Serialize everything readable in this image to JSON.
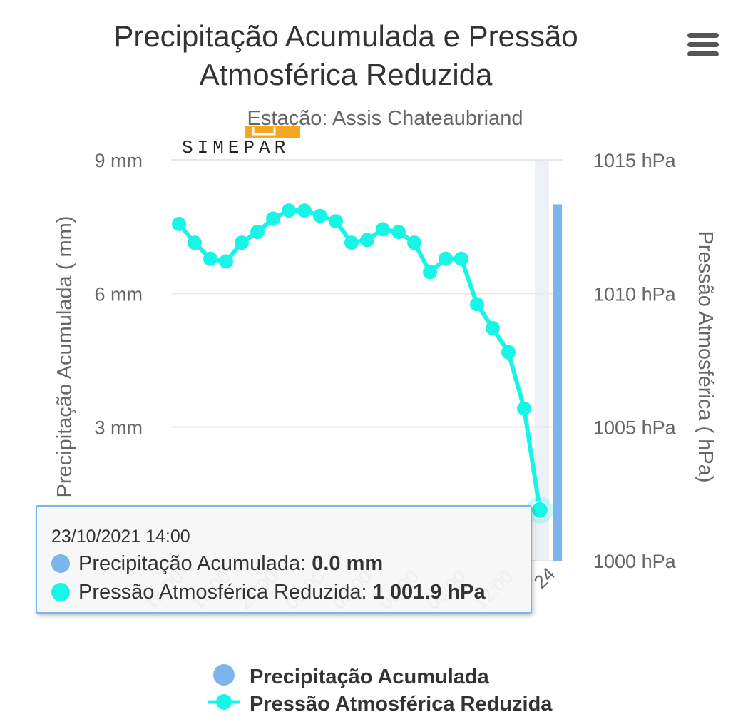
{
  "header": {
    "title_line1": "Precipitação Acumulada e Pressão",
    "title_line2": "Atmosférica Reduzida",
    "subtitle": "Estação: Assis Chateaubriand",
    "logo_text": "SIMEPAR",
    "menu_icon": "hamburger-menu-icon"
  },
  "colors": {
    "precip": "#7cb5ec",
    "pressure": "#17f6e6",
    "grid": "#e6e6e6",
    "axis_text": "#666666",
    "logo_orange": "#f5a623",
    "highlight_band": "#eef0f8"
  },
  "chart_data": {
    "type": "bar+line",
    "x_tick_labels": [
      "15:00",
      "18:00",
      "21:00",
      "00:00",
      "03:00",
      "06:00",
      "09:00",
      "12:00",
      "24"
    ],
    "left_axis": {
      "title": "Precipitação Acumulada ( mm)",
      "ticks": [
        "3 mm",
        "6 mm",
        "9 mm"
      ],
      "range": [
        0,
        9
      ]
    },
    "right_axis": {
      "title": "Pressão Atmosférica ( hPa)",
      "ticks": [
        "1000 hPa",
        "1005 hPa",
        "1010 hPa",
        "1015 hPa"
      ],
      "range": [
        1000,
        1015
      ]
    },
    "series": [
      {
        "name": "Precipitação Acumulada",
        "type": "bar",
        "unit": "mm",
        "values": [
          0,
          0,
          0,
          0,
          0,
          0,
          0,
          0,
          0,
          0,
          0,
          0,
          0,
          0,
          0,
          0,
          0,
          0,
          0,
          0,
          0,
          0,
          0,
          0,
          8
        ]
      },
      {
        "name": "Pressão Atmosférica Reduzida",
        "type": "line",
        "unit": "hPa",
        "values": [
          1012.6,
          1011.9,
          1011.3,
          1011.2,
          1011.9,
          1012.3,
          1012.8,
          1013.1,
          1013.1,
          1012.9,
          1012.7,
          1011.9,
          1012.0,
          1012.4,
          1012.3,
          1011.9,
          1010.8,
          1011.3,
          1011.3,
          1009.6,
          1008.7,
          1007.8,
          1005.7,
          1001.9
        ]
      }
    ],
    "legend": {
      "position": "bottom"
    },
    "grid": true
  },
  "tooltip": {
    "date": "23/10/2021 14:00",
    "rows": [
      {
        "label": "Precipitação Acumulada: ",
        "value": "0.0 mm"
      },
      {
        "label": "Pressão Atmosférica Reduzida: ",
        "value": "1 001.9 hPa"
      }
    ]
  },
  "legend": {
    "items": [
      "Precipitação Acumulada",
      "Pressão Atmosférica Reduzida"
    ]
  }
}
